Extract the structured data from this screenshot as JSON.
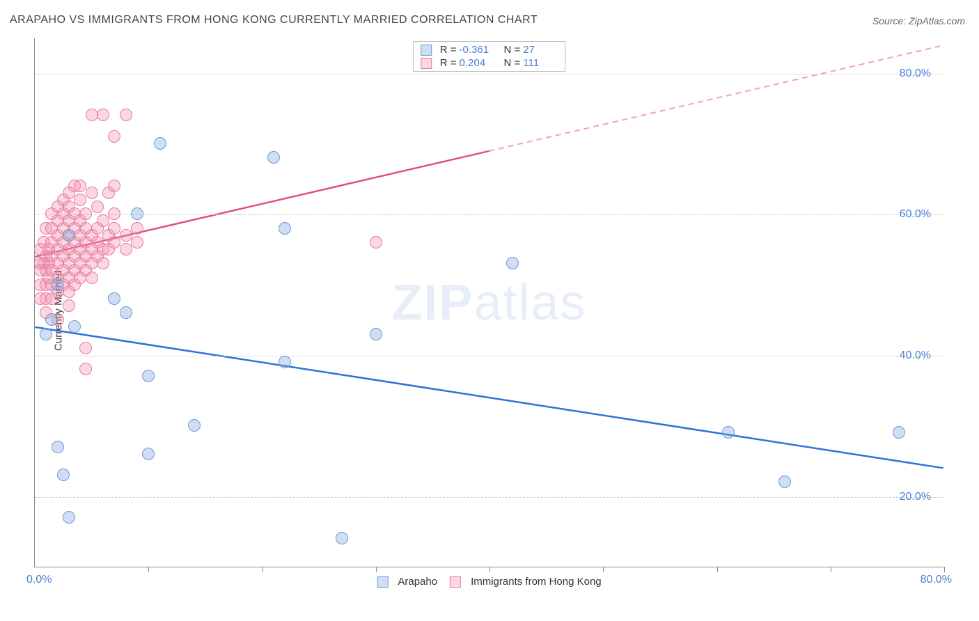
{
  "title": "ARAPAHO VS IMMIGRANTS FROM HONG KONG CURRENTLY MARRIED CORRELATION CHART",
  "source": "Source: ZipAtlas.com",
  "ylabel": "Currently Married",
  "watermark_bold": "ZIP",
  "watermark_rest": "atlas",
  "chart": {
    "type": "scatter-correlation",
    "xlim": [
      0,
      80
    ],
    "ylim": [
      10,
      85
    ],
    "x_ticks": [
      0,
      10,
      20,
      30,
      40,
      50,
      60,
      70,
      80
    ],
    "x_tick_labels": {
      "0": "0.0%",
      "80": "80.0%"
    },
    "y_gridlines": [
      20,
      40,
      60,
      80
    ],
    "y_tick_labels": [
      "20.0%",
      "40.0%",
      "60.0%",
      "80.0%"
    ],
    "background_color": "#ffffff",
    "grid_color": "#cccccc",
    "axis_color": "#888888",
    "tick_label_color": "#4a7fd6",
    "marker_radius": 9,
    "series": [
      {
        "name": "Arapaho",
        "fill_color": "rgba(120,160,220,0.35)",
        "stroke_color": "#6a99d8",
        "r_label": "R",
        "r_value": "-0.361",
        "n_label": "N",
        "n_value": "27",
        "trend_line": {
          "x1": 0,
          "y1": 44,
          "x2": 80,
          "y2": 24,
          "dashed": false,
          "color": "#2d72d9",
          "width": 2.5
        },
        "points": [
          [
            1,
            43
          ],
          [
            1.5,
            45
          ],
          [
            2,
            50
          ],
          [
            2,
            27
          ],
          [
            2.5,
            23
          ],
          [
            3,
            17
          ],
          [
            3,
            57
          ],
          [
            3.5,
            44
          ],
          [
            7,
            48
          ],
          [
            8,
            46
          ],
          [
            9,
            60
          ],
          [
            10,
            26
          ],
          [
            10,
            37
          ],
          [
            11,
            70
          ],
          [
            14,
            30
          ],
          [
            21,
            68
          ],
          [
            22,
            58
          ],
          [
            22,
            39
          ],
          [
            27,
            14
          ],
          [
            30,
            43
          ],
          [
            42,
            53
          ],
          [
            61,
            29
          ],
          [
            66,
            22
          ],
          [
            76,
            29
          ]
        ]
      },
      {
        "name": "Immigrants from Hong Kong",
        "fill_color": "rgba(240,140,170,0.35)",
        "stroke_color": "#e77aa0",
        "r_label": "R",
        "r_value": "0.204",
        "n_label": "N",
        "n_value": "111",
        "trend_line_solid": {
          "x1": 0,
          "y1": 54,
          "x2": 40,
          "y2": 69,
          "color": "#e0507f",
          "width": 2.5
        },
        "trend_line_dashed": {
          "x1": 40,
          "y1": 69,
          "x2": 80,
          "y2": 84,
          "color": "#f0a0b8",
          "width": 2
        },
        "points": [
          [
            0.5,
            52
          ],
          [
            0.5,
            53
          ],
          [
            0.5,
            50
          ],
          [
            0.5,
            48
          ],
          [
            0.5,
            55
          ],
          [
            0.8,
            53
          ],
          [
            0.8,
            56
          ],
          [
            1,
            54
          ],
          [
            1,
            52
          ],
          [
            1,
            50
          ],
          [
            1,
            48
          ],
          [
            1,
            46
          ],
          [
            1,
            58
          ],
          [
            1.2,
            53
          ],
          [
            1.2,
            55
          ],
          [
            1.2,
            51
          ],
          [
            1.5,
            54
          ],
          [
            1.5,
            56
          ],
          [
            1.5,
            52
          ],
          [
            1.5,
            58
          ],
          [
            1.5,
            50
          ],
          [
            1.5,
            48
          ],
          [
            1.5,
            60
          ],
          [
            2,
            53
          ],
          [
            2,
            55
          ],
          [
            2,
            51
          ],
          [
            2,
            57
          ],
          [
            2,
            49
          ],
          [
            2,
            59
          ],
          [
            2,
            61
          ],
          [
            2,
            45
          ],
          [
            2.5,
            54
          ],
          [
            2.5,
            56
          ],
          [
            2.5,
            52
          ],
          [
            2.5,
            58
          ],
          [
            2.5,
            50
          ],
          [
            2.5,
            62
          ],
          [
            2.5,
            60
          ],
          [
            3,
            53
          ],
          [
            3,
            55
          ],
          [
            3,
            57
          ],
          [
            3,
            51
          ],
          [
            3,
            59
          ],
          [
            3,
            63
          ],
          [
            3,
            61
          ],
          [
            3,
            49
          ],
          [
            3,
            47
          ],
          [
            3.5,
            54
          ],
          [
            3.5,
            56
          ],
          [
            3.5,
            58
          ],
          [
            3.5,
            52
          ],
          [
            3.5,
            64
          ],
          [
            3.5,
            60
          ],
          [
            3.5,
            50
          ],
          [
            4,
            55
          ],
          [
            4,
            57
          ],
          [
            4,
            53
          ],
          [
            4,
            59
          ],
          [
            4,
            62
          ],
          [
            4,
            51
          ],
          [
            4,
            64
          ],
          [
            4.5,
            56
          ],
          [
            4.5,
            54
          ],
          [
            4.5,
            58
          ],
          [
            4.5,
            60
          ],
          [
            4.5,
            52
          ],
          [
            4.5,
            38
          ],
          [
            4.5,
            41
          ],
          [
            5,
            55
          ],
          [
            5,
            57
          ],
          [
            5,
            53
          ],
          [
            5,
            63
          ],
          [
            5,
            74
          ],
          [
            5,
            51
          ],
          [
            5.5,
            56
          ],
          [
            5.5,
            58
          ],
          [
            5.5,
            54
          ],
          [
            5.5,
            61
          ],
          [
            6,
            55
          ],
          [
            6,
            59
          ],
          [
            6,
            53
          ],
          [
            6,
            74
          ],
          [
            6.5,
            57
          ],
          [
            6.5,
            63
          ],
          [
            6.5,
            55
          ],
          [
            7,
            56
          ],
          [
            7,
            60
          ],
          [
            7,
            58
          ],
          [
            7,
            64
          ],
          [
            7,
            71
          ],
          [
            8,
            55
          ],
          [
            8,
            57
          ],
          [
            8,
            74
          ],
          [
            9,
            56
          ],
          [
            9,
            58
          ],
          [
            30,
            56
          ]
        ]
      }
    ]
  }
}
